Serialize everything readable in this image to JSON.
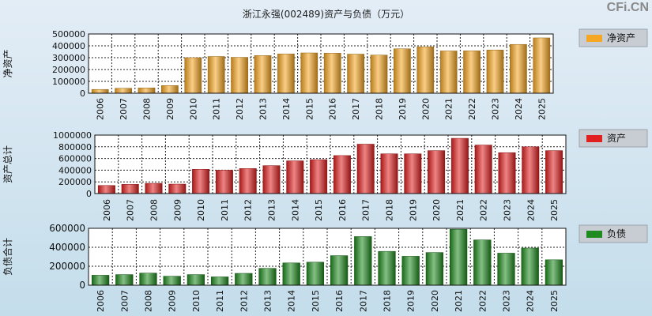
{
  "title": "浙江永强(002489)资产与负债（万元）",
  "watermark": "CFi.CN",
  "colors": {
    "net_assets": "#f5a623",
    "assets": "#e02020",
    "liabilities": "#1f8a1f",
    "legend_bg": "#c8cdd3"
  },
  "chart_data": [
    {
      "type": "bar",
      "ylabel": "净资产",
      "legend": "净资产",
      "categories": [
        "2006",
        "2007",
        "2008",
        "2009",
        "2010",
        "2011",
        "2012",
        "2013",
        "2014",
        "2015",
        "2016",
        "2017",
        "2018",
        "2019",
        "2020",
        "2021",
        "2022",
        "2023",
        "2024",
        "2025"
      ],
      "values": [
        32000,
        42000,
        45000,
        65000,
        300000,
        310000,
        303000,
        318000,
        332000,
        340000,
        338000,
        330000,
        322000,
        375000,
        392000,
        357000,
        358000,
        365000,
        412000,
        467000
      ],
      "ylim": [
        0,
        500000
      ],
      "yticks": [
        "500000",
        "400000",
        "300000",
        "200000",
        "100000",
        "0"
      ],
      "grid": true,
      "legend_position": "top-right"
    },
    {
      "type": "bar",
      "ylabel": "资产总计",
      "legend": "资产",
      "categories": [
        "2006",
        "2007",
        "2008",
        "2009",
        "2010",
        "2011",
        "2012",
        "2013",
        "2014",
        "2015",
        "2016",
        "2017",
        "2018",
        "2019",
        "2020",
        "2021",
        "2022",
        "2023",
        "2024",
        "2025"
      ],
      "values": [
        138000,
        158000,
        175000,
        162000,
        415000,
        400000,
        428000,
        478000,
        560000,
        580000,
        650000,
        845000,
        680000,
        680000,
        735000,
        945000,
        830000,
        700000,
        800000,
        735000
      ],
      "ylim": [
        0,
        1000000
      ],
      "yticks": [
        "1000000",
        "800000",
        "600000",
        "400000",
        "200000",
        "0"
      ],
      "grid": true,
      "legend_position": "top-right"
    },
    {
      "type": "bar",
      "ylabel": "负债合计",
      "legend": "负债",
      "categories": [
        "2006",
        "2007",
        "2008",
        "2009",
        "2010",
        "2011",
        "2012",
        "2013",
        "2014",
        "2015",
        "2016",
        "2017",
        "2018",
        "2019",
        "2020",
        "2021",
        "2022",
        "2023",
        "2024",
        "2025"
      ],
      "values": [
        105000,
        112000,
        128000,
        95000,
        112000,
        88000,
        125000,
        178000,
        235000,
        243000,
        312000,
        513000,
        357000,
        305000,
        345000,
        590000,
        478000,
        338000,
        392000,
        268000
      ],
      "ylim": [
        0,
        600000
      ],
      "yticks": [
        "600000",
        "400000",
        "200000",
        "0"
      ],
      "grid": true,
      "legend_position": "top-right"
    }
  ]
}
